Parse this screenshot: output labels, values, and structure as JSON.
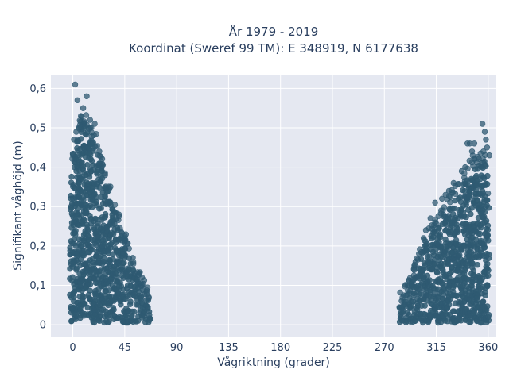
{
  "chart_data": {
    "type": "scatter",
    "title_line1": "År 1979 - 2019",
    "title_line2": "Koordinat (Sweref 99 TM): E 348919, N 6177638",
    "xlabel": "Vågriktning (grader)",
    "ylabel": "Signifikant våghöjd (m)",
    "xlim": [
      -19,
      367
    ],
    "ylim": [
      -0.03,
      0.635
    ],
    "grid": true,
    "x_ticks": [
      0,
      45,
      90,
      135,
      180,
      225,
      270,
      315,
      360
    ],
    "x_tick_labels": [
      "0",
      "45",
      "90",
      "135",
      "180",
      "225",
      "270",
      "315",
      "360"
    ],
    "y_ticks": [
      0,
      0.1,
      0.2,
      0.3,
      0.4,
      0.5,
      0.6
    ],
    "y_tick_labels": [
      "0",
      "0,1",
      "0,2",
      "0,3",
      "0,4",
      "0,5",
      "0,6"
    ],
    "marker_color": "#2f5a72",
    "plot_bg": "#e5e8f1",
    "clusters": [
      {
        "envelope": [
          [
            -2,
            0.35
          ],
          [
            0,
            0.41
          ],
          [
            3,
            0.45
          ],
          [
            6,
            0.49
          ],
          [
            9,
            0.52
          ],
          [
            12,
            0.5
          ],
          [
            15,
            0.48
          ],
          [
            18,
            0.47
          ],
          [
            21,
            0.45
          ],
          [
            24,
            0.41
          ],
          [
            27,
            0.38
          ],
          [
            30,
            0.36
          ],
          [
            33,
            0.32
          ],
          [
            36,
            0.29
          ],
          [
            39,
            0.26
          ],
          [
            42,
            0.23
          ],
          [
            45,
            0.21
          ],
          [
            48,
            0.18
          ],
          [
            51,
            0.15
          ],
          [
            54,
            0.12
          ],
          [
            57,
            0.11
          ],
          [
            60,
            0.1
          ],
          [
            63,
            0.08
          ],
          [
            66,
            0.06
          ],
          [
            67,
            0.03
          ]
        ]
      },
      {
        "envelope": [
          [
            283,
            0.05
          ],
          [
            285,
            0.06
          ],
          [
            288,
            0.07
          ],
          [
            292,
            0.09
          ],
          [
            296,
            0.12
          ],
          [
            300,
            0.16
          ],
          [
            303,
            0.18
          ],
          [
            306,
            0.21
          ],
          [
            310,
            0.23
          ],
          [
            314,
            0.24
          ],
          [
            318,
            0.27
          ],
          [
            322,
            0.28
          ],
          [
            326,
            0.3
          ],
          [
            330,
            0.32
          ],
          [
            334,
            0.33
          ],
          [
            338,
            0.35
          ],
          [
            342,
            0.38
          ],
          [
            346,
            0.4
          ],
          [
            350,
            0.4
          ],
          [
            354,
            0.41
          ],
          [
            357,
            0.42
          ],
          [
            359,
            0.4
          ],
          [
            360,
            0.3
          ]
        ]
      }
    ],
    "outliers": [
      [
        2,
        0.61
      ],
      [
        4,
        0.57
      ],
      [
        12,
        0.58
      ],
      [
        7,
        0.53
      ],
      [
        9,
        0.55
      ],
      [
        15,
        0.52
      ],
      [
        19,
        0.51
      ],
      [
        3,
        0.49
      ],
      [
        1,
        0.47
      ],
      [
        16,
        0.5
      ],
      [
        23,
        0.44
      ],
      [
        28,
        0.38
      ],
      [
        40,
        0.28
      ],
      [
        45,
        0.22
      ],
      [
        52,
        0.17
      ],
      [
        60,
        0.12
      ],
      [
        355,
        0.51
      ],
      [
        357,
        0.49
      ],
      [
        358,
        0.47
      ],
      [
        359,
        0.45
      ],
      [
        361,
        0.43
      ],
      [
        342,
        0.46
      ],
      [
        344,
        0.46
      ],
      [
        348,
        0.46
      ],
      [
        346,
        0.44
      ],
      [
        340,
        0.4
      ],
      [
        337,
        0.39
      ],
      [
        330,
        0.36
      ],
      [
        326,
        0.34
      ],
      [
        323,
        0.33
      ],
      [
        320,
        0.32
      ],
      [
        314,
        0.31
      ],
      [
        310,
        0.27
      ],
      [
        306,
        0.24
      ],
      [
        304,
        0.22
      ],
      [
        300,
        0.18
      ],
      [
        296,
        0.15
      ],
      [
        290,
        0.1
      ],
      [
        285,
        0.06
      ]
    ]
  }
}
